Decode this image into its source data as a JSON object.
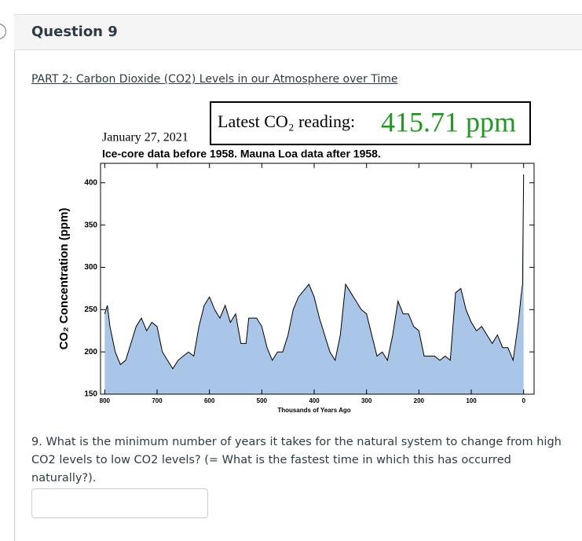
{
  "question": {
    "title": "Question 9",
    "link": "PART 2: Carbon Dioxide (CO2) Levels in our Atmosphere over Time",
    "text": "9. What is the minimum number of years it takes for the natural system to change from high CO2 levels to low CO2 levels? (= What is the fastest time in which this has occurred naturally?)."
  },
  "chart_data": {
    "type": "area",
    "date": "January 27, 2021",
    "latest_label": "Latest CO₂ reading:",
    "latest_value": "415.71 ppm",
    "subtitle": "Ice-core data before 1958. Mauna Loa data after 1958.",
    "x_label": "Thousands of Years Ago",
    "y_label": "CO₂ Concentration (ppm)",
    "color": "#a9c6e8",
    "line_color": "#000000",
    "xlim": [
      808,
      -20
    ],
    "xticks": [
      800,
      700,
      600,
      500,
      400,
      300,
      200,
      100,
      0
    ],
    "ylim": [
      150,
      423
    ],
    "yticks": [
      150,
      200,
      250,
      300,
      350,
      400
    ],
    "x": [
      800,
      795,
      790,
      780,
      770,
      760,
      750,
      740,
      730,
      720,
      710,
      700,
      690,
      680,
      670,
      660,
      650,
      640,
      630,
      620,
      610,
      600,
      590,
      580,
      570,
      560,
      550,
      540,
      530,
      525,
      510,
      500,
      490,
      480,
      470,
      460,
      450,
      440,
      430,
      410,
      400,
      390,
      380,
      370,
      360,
      350,
      340,
      330,
      320,
      310,
      300,
      290,
      280,
      270,
      260,
      250,
      240,
      230,
      220,
      210,
      200,
      190,
      180,
      170,
      160,
      150,
      140,
      130,
      120,
      110,
      100,
      90,
      80,
      70,
      60,
      50,
      40,
      30,
      20,
      10,
      5,
      2,
      0
    ],
    "values": [
      245,
      255,
      230,
      200,
      185,
      190,
      210,
      230,
      240,
      225,
      235,
      230,
      200,
      190,
      180,
      190,
      195,
      200,
      195,
      230,
      255,
      265,
      250,
      240,
      255,
      235,
      245,
      210,
      210,
      240,
      240,
      230,
      205,
      190,
      200,
      200,
      220,
      250,
      265,
      280,
      265,
      240,
      220,
      200,
      190,
      220,
      280,
      270,
      260,
      250,
      245,
      220,
      195,
      200,
      190,
      220,
      260,
      245,
      245,
      230,
      225,
      195,
      195,
      195,
      190,
      195,
      190,
      270,
      275,
      250,
      235,
      225,
      230,
      220,
      210,
      220,
      205,
      205,
      190,
      235,
      265,
      280,
      410
    ]
  }
}
